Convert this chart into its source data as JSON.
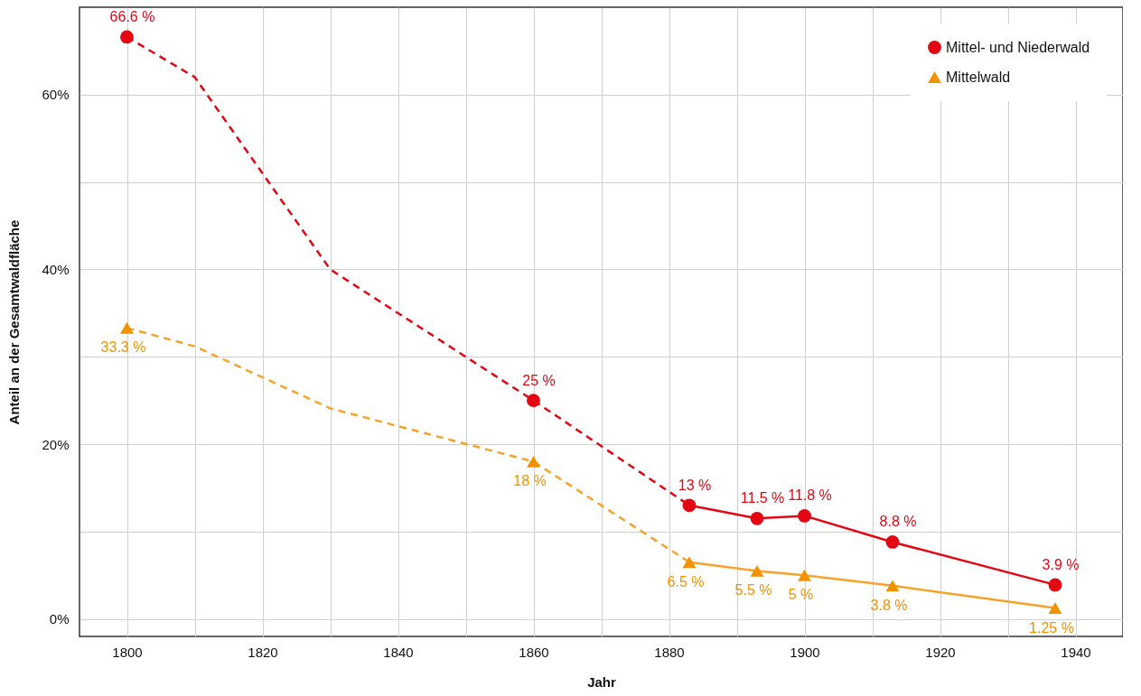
{
  "chart_data": {
    "type": "line",
    "xlabel": "Jahr",
    "ylabel": "Anteil an der Gesamtwaldfläche",
    "xlim": [
      1793,
      1947
    ],
    "ylim": [
      -2,
      70
    ],
    "xticks": [
      1800,
      {
        "value": 1810,
        "label": null
      },
      1820,
      {
        "value": 1830,
        "label": null
      },
      1840,
      {
        "value": 1850,
        "label": null
      },
      1860,
      {
        "value": 1870,
        "label": null
      },
      1880,
      {
        "value": 1890,
        "label": null
      },
      1900,
      {
        "value": 1910,
        "label": null
      },
      1920,
      {
        "value": 1930,
        "label": null
      },
      1940
    ],
    "yticks": [
      {
        "value": 0,
        "label": "0%"
      },
      {
        "value": 10,
        "label": null
      },
      {
        "value": 20,
        "label": "20%"
      },
      {
        "value": 30,
        "label": null
      },
      {
        "value": 40,
        "label": "40%"
      },
      {
        "value": 50,
        "label": null
      },
      {
        "value": 60,
        "label": "60%"
      }
    ],
    "grid": true,
    "legend": "top right",
    "series": [
      {
        "color": "#e30613",
        "line_style": "dashed",
        "marker": "none",
        "x": [
          1800,
          1810,
          1830,
          1860,
          1883
        ],
        "values": [
          66.6,
          62,
          40,
          25,
          13
        ]
      },
      {
        "color": "#e30613",
        "line_style": "solid",
        "marker": "none",
        "x": [
          1883,
          1893,
          1900,
          1913,
          1937
        ],
        "values": [
          13,
          11.5,
          11.8,
          8.8,
          3.9
        ]
      },
      {
        "color": "#f5a32a",
        "line_style": "dashed",
        "marker": "none",
        "x": [
          1800,
          1810,
          1830,
          1860,
          1883
        ],
        "values": [
          33.3,
          31.2,
          24.1,
          18,
          6.5
        ]
      },
      {
        "color": "#f5a32a",
        "line_style": "solid",
        "marker": "none",
        "x": [
          1883,
          1893,
          1900,
          1913,
          1937
        ],
        "values": [
          6.5,
          5.5,
          5,
          3.8,
          1.25
        ]
      },
      {
        "type": "scatter",
        "name": "Mittel- und Niederwald",
        "color": "#e30613",
        "marker": "circle",
        "x": [
          1800,
          1860,
          1883,
          1893,
          1900,
          1913,
          1937
        ],
        "values": [
          66.6,
          25,
          13,
          11.5,
          11.8,
          8.8,
          3.9
        ],
        "value_labels": [
          "66.6 %",
          "25 %",
          "13 %",
          "11.5 %",
          "11.8 %",
          "8.8 %",
          "3.9 %"
        ]
      },
      {
        "type": "scatter",
        "name": "Mittelwald",
        "color": "#f39200",
        "marker": "triangle",
        "x": [
          1800,
          1860,
          1883,
          1893,
          1900,
          1913,
          1937
        ],
        "values": [
          33.3,
          18,
          6.5,
          5.5,
          5,
          3.8,
          1.25
        ],
        "value_labels": [
          "33.3 %",
          "18 %",
          "6.5 %",
          "5.5 %",
          "5 %",
          "3.8 %",
          "1.25 %"
        ]
      }
    ]
  }
}
